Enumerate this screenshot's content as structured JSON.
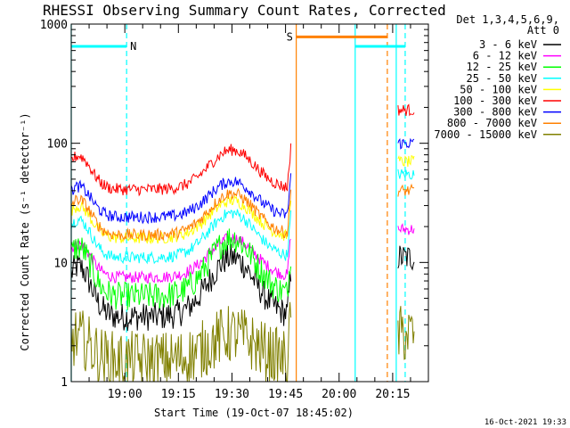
{
  "chart_data": {
    "type": "line",
    "title": "RHESSI Observing Summary Count Rates, Corrected",
    "ylabel": "Corrected Count Rate (s⁻¹ detector⁻¹)",
    "xlabel": "Start Time (19-Oct-07 18:45:02)",
    "y_scale": "log",
    "ylim": [
      1,
      1000
    ],
    "xlim_minutes": [
      0,
      100
    ],
    "y_ticks": [
      "1",
      "10",
      "100",
      "1000"
    ],
    "x_ticks": [
      {
        "label": "19:00",
        "minutes": 15
      },
      {
        "label": "19:15",
        "minutes": 30
      },
      {
        "label": "19:30",
        "minutes": 45
      },
      {
        "label": "19:45",
        "minutes": 60
      },
      {
        "label": "20:00",
        "minutes": 75
      },
      {
        "label": "20:15",
        "minutes": 90
      }
    ],
    "legend_header": [
      "Det 1,3,4,5,6,9,",
      "Att 0"
    ],
    "series": [
      {
        "name": "3 - 6 keV",
        "color": "#000000",
        "base": 3.5,
        "peak": 11,
        "after": 11
      },
      {
        "name": "6 - 12 keV",
        "color": "#ff00ff",
        "base": 7.5,
        "peak": 16,
        "after": 19
      },
      {
        "name": "12 - 25 keV",
        "color": "#00ff00",
        "base": 5.2,
        "peak": 16,
        "after": 0
      },
      {
        "name": "25 - 50 keV",
        "color": "#00ffff",
        "base": 11,
        "peak": 26,
        "after": 55
      },
      {
        "name": "50 - 100 keV",
        "color": "#ffff00",
        "base": 16,
        "peak": 33,
        "after": 70
      },
      {
        "name": "100 - 300 keV",
        "color": "#ff0000",
        "base": 41,
        "peak": 88,
        "after": 190
      },
      {
        "name": "300 - 800 keV",
        "color": "#0000ff",
        "base": 24,
        "peak": 48,
        "after": 100
      },
      {
        "name": "800 - 7000 keV",
        "color": "#ff8000",
        "base": 17,
        "peak": 38,
        "after": 40
      },
      {
        "name": "7000 - 15000 keV",
        "color": "#808000",
        "base": 1.5,
        "peak": 2.5,
        "after": 2.5
      }
    ],
    "flags": [
      {
        "label": "N",
        "color": "#00ffff",
        "start_min": 0,
        "end_min": 15.5,
        "level": 650
      },
      {
        "label": "S",
        "color": "#ff8000",
        "start_min": 63,
        "end_min": 88.5,
        "level": 780
      },
      {
        "label": "",
        "color": "#00ffff",
        "start_min": 79.5,
        "end_min": 93.5,
        "level": 650
      }
    ],
    "vlines": [
      {
        "minutes": 0,
        "color": "#00ffff",
        "style": "solid"
      },
      {
        "minutes": 15.5,
        "color": "#00ffff",
        "style": "dashed"
      },
      {
        "minutes": 63,
        "color": "#ff8000",
        "style": "solid"
      },
      {
        "minutes": 79.5,
        "color": "#00ffff",
        "style": "solid"
      },
      {
        "minutes": 88.5,
        "color": "#ff8000",
        "style": "dashed"
      },
      {
        "minutes": 91,
        "color": "#00ffff",
        "style": "solid"
      },
      {
        "minutes": 93.5,
        "color": "#00ffff",
        "style": "dashed"
      }
    ],
    "grid": false,
    "legend_position": "right"
  },
  "footer_timestamp": "16-Oct-2021 19:33"
}
